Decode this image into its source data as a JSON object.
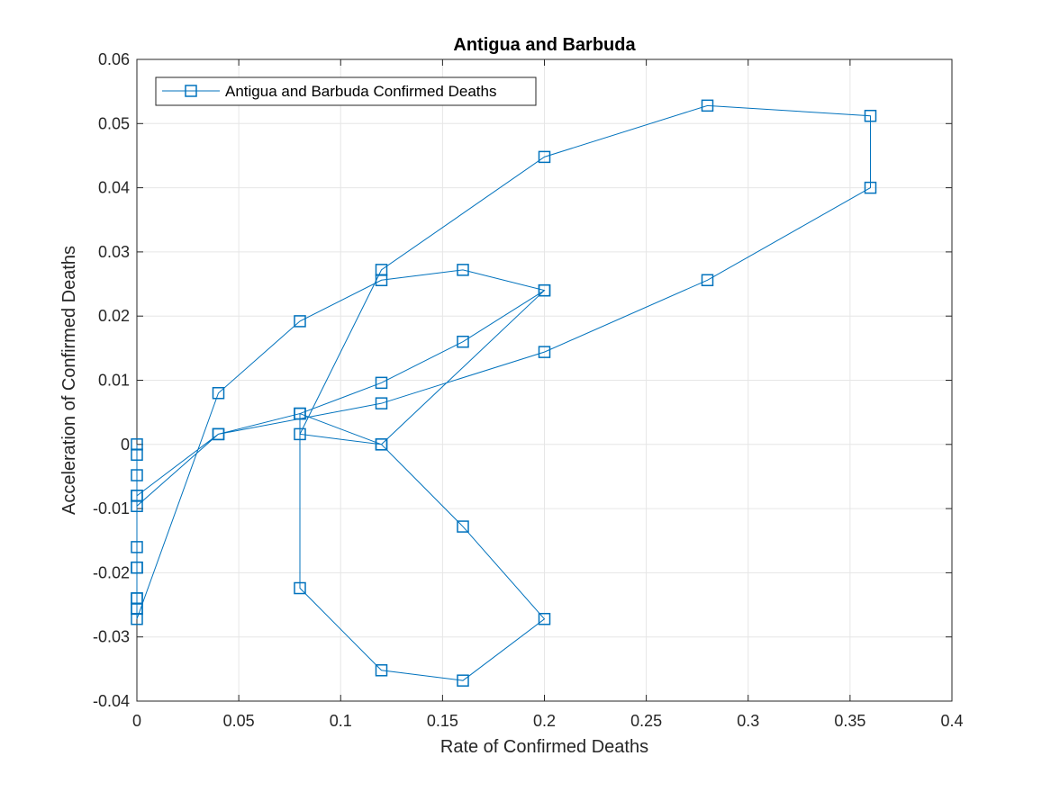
{
  "chart_data": {
    "type": "line",
    "title": "Antigua and Barbuda",
    "xlabel": "Rate of Confirmed Deaths",
    "ylabel": "Acceleration of Confirmed Deaths",
    "xlim": [
      0,
      0.4
    ],
    "ylim": [
      -0.04,
      0.06
    ],
    "xticks": [
      0,
      0.05,
      0.1,
      0.15,
      0.2,
      0.25,
      0.3,
      0.35,
      0.4
    ],
    "yticks": [
      -0.04,
      -0.03,
      -0.02,
      -0.01,
      0,
      0.01,
      0.02,
      0.03,
      0.04,
      0.05,
      0.06
    ],
    "xtick_labels": [
      "0",
      "0.05",
      "0.1",
      "0.15",
      "0.2",
      "0.25",
      "0.3",
      "0.35",
      "0.4"
    ],
    "ytick_labels": [
      "-0.04",
      "-0.03",
      "-0.02",
      "-0.01",
      "0",
      "0.01",
      "0.02",
      "0.03",
      "0.04",
      "0.05",
      "0.06"
    ],
    "grid": true,
    "legend_position": "top-left",
    "series": [
      {
        "name": "Antigua and Barbuda Confirmed Deaths",
        "color": "#0072BD",
        "marker": "square",
        "x": [
          0,
          0,
          0,
          0,
          0,
          0,
          0,
          0,
          0,
          0.04,
          0.08,
          0.12,
          0.16,
          0.2,
          0.12,
          0.08,
          0.08,
          0.12,
          0.16,
          0.2,
          0.16,
          0.12,
          0.08,
          0.12,
          0.2,
          0.28,
          0.36,
          0.36,
          0.28,
          0.2,
          0.12,
          0.04,
          0,
          0,
          0,
          0,
          0,
          0.04,
          0.08,
          0.12,
          0.16,
          0.2
        ],
        "y": [
          0,
          -0.0016,
          -0.0048,
          -0.008,
          -0.016,
          -0.0192,
          -0.024,
          -0.0256,
          -0.0272,
          0.008,
          0.0192,
          0.0256,
          0.0272,
          0.024,
          0.0,
          0.0048,
          -0.0224,
          -0.0352,
          -0.0368,
          -0.0272,
          -0.0128,
          0.0,
          0.0016,
          0.0272,
          0.0448,
          0.0528,
          0.0512,
          0.04,
          0.0256,
          0.0144,
          0.0064,
          0.0016,
          -0.0096,
          -0.0256,
          -0.024,
          -0.0192,
          -0.008,
          0.0016,
          0.0048,
          0.0096,
          0.016,
          0.024
        ]
      }
    ]
  }
}
